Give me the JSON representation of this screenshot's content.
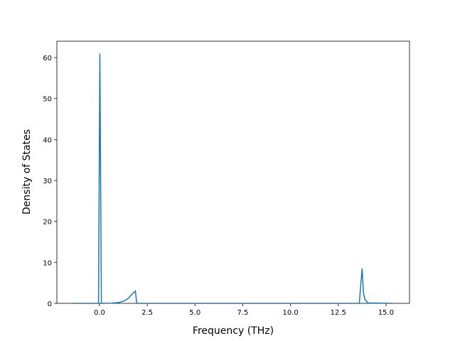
{
  "chart_data": {
    "type": "line",
    "xlabel": "Frequency (THz)",
    "ylabel": "Density of States",
    "x": [
      -1.41,
      -0.05,
      0.02,
      0.1,
      0.6,
      1.0,
      1.3,
      1.5,
      1.7,
      1.88,
      1.95,
      13.6,
      13.75,
      13.82,
      13.9,
      14.05,
      15.37
    ],
    "values": [
      0,
      0,
      61,
      0,
      0.05,
      0.2,
      0.6,
      1.2,
      2.2,
      3.0,
      0,
      0,
      8.5,
      2.5,
      1.0,
      0.1,
      0
    ],
    "color": "#1f77b4",
    "xlim": [
      -2.23,
      16.23
    ],
    "xticks": [
      {
        "value": 0,
        "label": "0.0"
      },
      {
        "value": 2.5,
        "label": "2.5"
      },
      {
        "value": 5,
        "label": "5.0"
      },
      {
        "value": 7.5,
        "label": "7.5"
      },
      {
        "value": 10,
        "label": "10.0"
      },
      {
        "value": 12.5,
        "label": "12.5"
      },
      {
        "value": 15,
        "label": "15.0"
      }
    ],
    "ylim": [
      0,
      64
    ],
    "yticks": [
      0,
      10,
      20,
      30,
      40,
      50,
      60
    ]
  }
}
